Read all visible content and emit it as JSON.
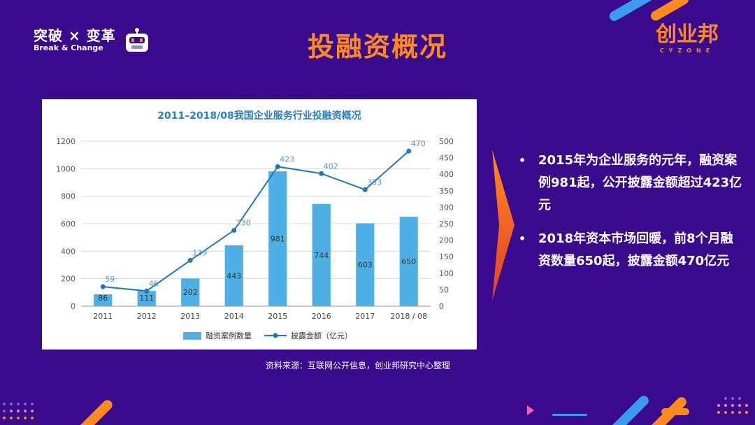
{
  "brand": {
    "cn": "突破 × 变革",
    "en": "Break & Change"
  },
  "title": "投融资概况",
  "logo": {
    "cn": "创业邦",
    "en": "CYZONE"
  },
  "source": "资料来源：互联网公开信息，创业邦研究中心整理",
  "bullets": [
    {
      "dot": "•",
      "text": "2015年为企业服务的元年，融资案例981起，公开披露金额超过423亿元"
    },
    {
      "dot": "•",
      "text": "2018年资本市场回暖，前8个月融资数量650起，披露金额470亿元"
    }
  ],
  "colors": {
    "bg": "#3a0a8c",
    "accent": "#ff8a1e",
    "bar": "#4fb0e6",
    "line": "#2277bb",
    "title_blue": "#2a7fc1"
  },
  "chart_data": {
    "type": "bar",
    "title": "2011–2018/08我国企业服务行业投融资概况",
    "categories": [
      "2011",
      "2012",
      "2013",
      "2014",
      "2015",
      "2016",
      "2017",
      "2018 / 08"
    ],
    "series": [
      {
        "name": "融资案例数量",
        "type": "bar",
        "axis": "left",
        "values": [
          86,
          111,
          202,
          443,
          981,
          744,
          603,
          650
        ]
      },
      {
        "name": "披露金额（亿元）",
        "type": "line",
        "axis": "right",
        "values": [
          59,
          46,
          139,
          230,
          423,
          402,
          353,
          470
        ]
      }
    ],
    "y_left": {
      "min": 0,
      "max": 1200,
      "ticks": [
        0,
        200,
        400,
        600,
        800,
        1000,
        1200
      ]
    },
    "y_right": {
      "min": 0,
      "max": 500,
      "ticks": [
        0,
        50,
        100,
        150,
        200,
        250,
        300,
        350,
        400,
        450,
        500
      ]
    },
    "grid": true,
    "legend": "bottom"
  }
}
